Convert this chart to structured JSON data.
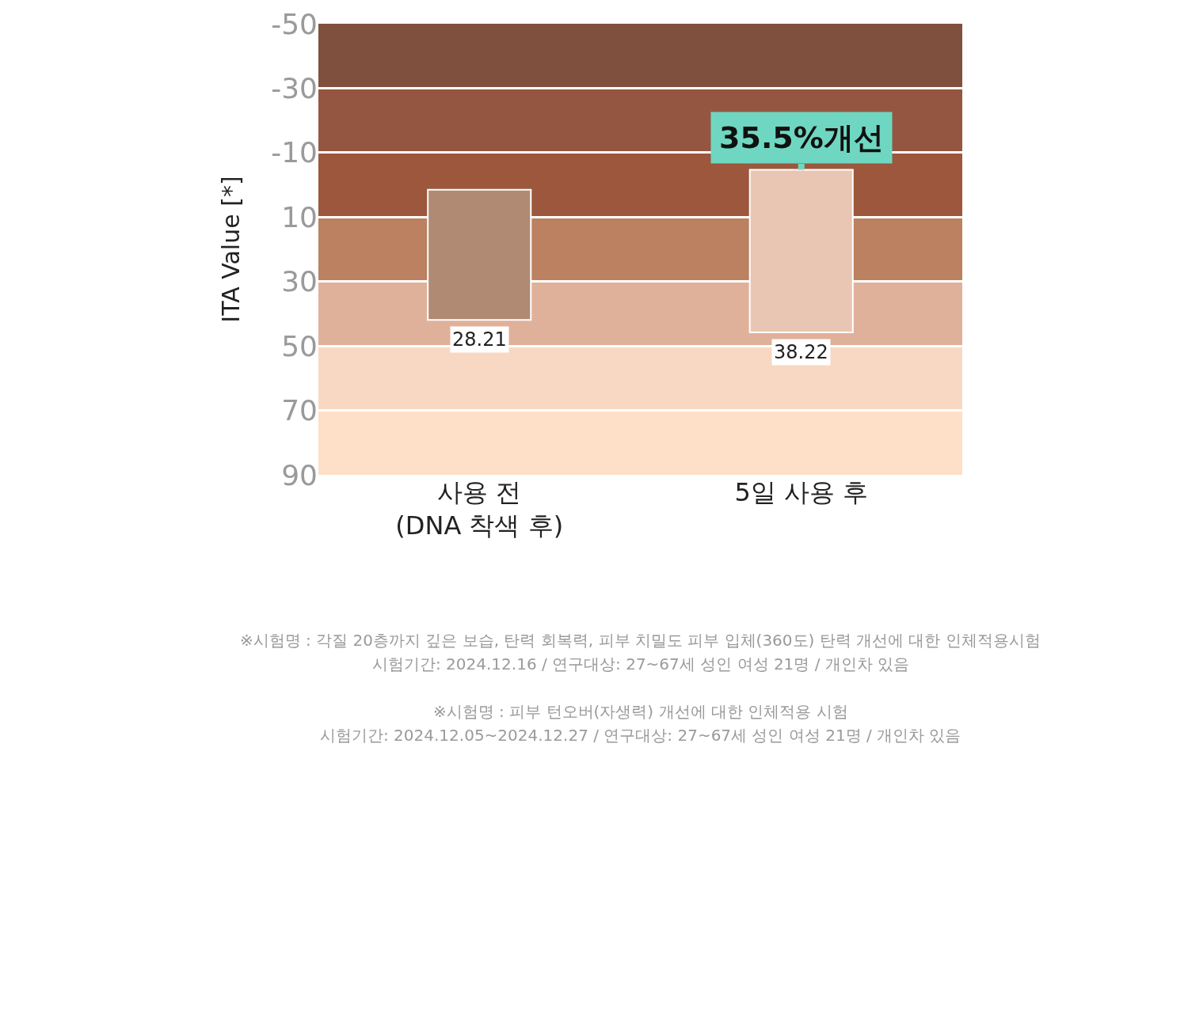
{
  "chart_data": {
    "type": "bar",
    "ylabel": "ITA Value [*]",
    "categories": [
      "사용 전\n(DNA 착색 후)",
      "5일 사용 후"
    ],
    "base": [
      1.5,
      -4.7
    ],
    "values": [
      40.4,
      50.5
    ],
    "colors": [
      "#b08a72",
      "#e9c6b3"
    ],
    "ylim": [
      90,
      -50
    ],
    "yticks": [
      -50,
      -30,
      -10,
      10,
      30,
      50,
      70,
      90
    ],
    "grid": "y",
    "bands": [
      {
        "axis": "y",
        "from": -50,
        "to": -30,
        "color": "#80503e"
      },
      {
        "axis": "y",
        "from": -30,
        "to": -10,
        "color": "#955641"
      },
      {
        "axis": "y",
        "from": -10,
        "to": 10,
        "color": "#9c573c"
      },
      {
        "axis": "y",
        "from": 10,
        "to": 30,
        "color": "#bb8160"
      },
      {
        "axis": "y",
        "from": 30,
        "to": 50,
        "color": "#e0b19a"
      },
      {
        "axis": "y",
        "from": 50,
        "to": 70,
        "color": "#f8d8c3"
      },
      {
        "axis": "y",
        "from": 70,
        "to": 90,
        "color": "#fde0c7"
      }
    ],
    "annotations": [
      {
        "text": "28.21",
        "x": "사용 전\n(DNA 착색 후)",
        "y": 41.9
      },
      {
        "text": "38.22",
        "x": "5일 사용 후",
        "y": 45.8
      },
      {
        "text": "35.5%개선",
        "x": "5일 사용 후",
        "y": -4.7
      },
      "※시험명 : 각질 20층까지 깊은 보습, 탄력 회복력, 피부 치밀도 피부 입체(360도) 탄력 개선에 대한 인체적용시험",
      "시험기간: 2024.12.16 / 연구대상: 27~67세 성인 여성 21명 / 개인차 있음",
      "※시험명 : 피부 턴오버(자생력) 개선에 대한 인체적용 시험",
      "시험기간: 2024.12.05~2024.12.27 / 연구대상: 27~67세 성인 여성 21명 / 개인차 있음"
    ]
  }
}
